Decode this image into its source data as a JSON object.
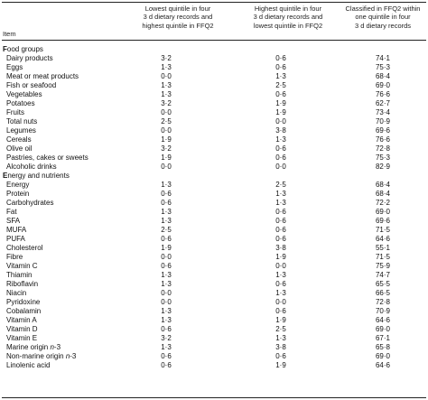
{
  "headers": {
    "item": "Item",
    "col1": [
      "Lowest quintile in four",
      "3 d dietary records and",
      "highest quintile in FFQ2"
    ],
    "col2": [
      "Highest quintile in four",
      "3 d dietary records and",
      "lowest quintile in FFQ2"
    ],
    "col3": [
      "Classified in FFQ2 within",
      "one quintile in four",
      "3 d dietary records"
    ]
  },
  "rows": [
    {
      "label": "Food groups",
      "section": true
    },
    {
      "label": "Dairy products",
      "values": [
        "3·2",
        "0·6",
        "74·1"
      ]
    },
    {
      "label": "Eggs",
      "values": [
        "1·3",
        "0·6",
        "75·3"
      ]
    },
    {
      "label": "Meat or meat products",
      "values": [
        "0·0",
        "1·3",
        "68·4"
      ]
    },
    {
      "label": "Fish or seafood",
      "values": [
        "1·3",
        "2·5",
        "69·0"
      ]
    },
    {
      "label": "Vegetables",
      "values": [
        "1·3",
        "0·6",
        "76·6"
      ]
    },
    {
      "label": "Potatoes",
      "values": [
        "3·2",
        "1·9",
        "62·7"
      ]
    },
    {
      "label": "Fruits",
      "values": [
        "0·0",
        "1·9",
        "73·4"
      ]
    },
    {
      "label": "Total nuts",
      "values": [
        "2·5",
        "0·0",
        "70·9"
      ]
    },
    {
      "label": "Legumes",
      "values": [
        "0·0",
        "3·8",
        "69·6"
      ]
    },
    {
      "label": "Cereals",
      "values": [
        "1·9",
        "1·3",
        "76·6"
      ]
    },
    {
      "label": "Olive oil",
      "values": [
        "3·2",
        "0·6",
        "72·8"
      ]
    },
    {
      "label": "Pastries, cakes or sweets",
      "values": [
        "1·9",
        "0·6",
        "75·3"
      ]
    },
    {
      "label": "Alcoholic drinks",
      "values": [
        "0·0",
        "0·0",
        "82·9"
      ]
    },
    {
      "label": "Energy and nutrients",
      "section": true
    },
    {
      "label": "Energy",
      "values": [
        "1·3",
        "2·5",
        "68·4"
      ]
    },
    {
      "label": "Protein",
      "values": [
        "0·6",
        "1·3",
        "68·4"
      ]
    },
    {
      "label": "Carbohydrates",
      "values": [
        "0·6",
        "1·3",
        "72·2"
      ]
    },
    {
      "label": "Fat",
      "values": [
        "1·3",
        "0·6",
        "69·0"
      ]
    },
    {
      "label": "SFA",
      "values": [
        "1·3",
        "0·6",
        "69·6"
      ]
    },
    {
      "label": "MUFA",
      "values": [
        "2·5",
        "0·6",
        "71·5"
      ]
    },
    {
      "label": "PUFA",
      "values": [
        "0·6",
        "0·6",
        "64·6"
      ]
    },
    {
      "label": "Cholesterol",
      "values": [
        "1·9",
        "3·8",
        "55·1"
      ]
    },
    {
      "label": "Fibre",
      "values": [
        "0·0",
        "1·9",
        "71·5"
      ]
    },
    {
      "label": "Vitamin C",
      "values": [
        "0·6",
        "0·0",
        "75·9"
      ]
    },
    {
      "label": "Thiamin",
      "values": [
        "1·3",
        "1·3",
        "74·7"
      ]
    },
    {
      "label": "Riboflavin",
      "values": [
        "1·3",
        "0·6",
        "65·5"
      ]
    },
    {
      "label": "Niacin",
      "values": [
        "0·0",
        "1·3",
        "66·5"
      ]
    },
    {
      "label": "Pyridoxine",
      "values": [
        "0·0",
        "0·0",
        "72·8"
      ]
    },
    {
      "label": "Cobalamin",
      "values": [
        "1·3",
        "0·6",
        "70·9"
      ]
    },
    {
      "label": "Vitamin A",
      "values": [
        "1·3",
        "1·9",
        "64·6"
      ]
    },
    {
      "label": "Vitamin D",
      "values": [
        "0·6",
        "2·5",
        "69·0"
      ]
    },
    {
      "label": "Vitamin E",
      "values": [
        "3·2",
        "1·3",
        "67·1"
      ]
    },
    {
      "label": "Marine origin n-3",
      "values": [
        "1·3",
        "3·8",
        "65·8"
      ]
    },
    {
      "label": "Non-marine origin n-3",
      "values": [
        "0·6",
        "0·6",
        "69·0"
      ]
    },
    {
      "label": "Linolenic acid",
      "values": [
        "0·6",
        "1·9",
        "64·6"
      ]
    }
  ]
}
